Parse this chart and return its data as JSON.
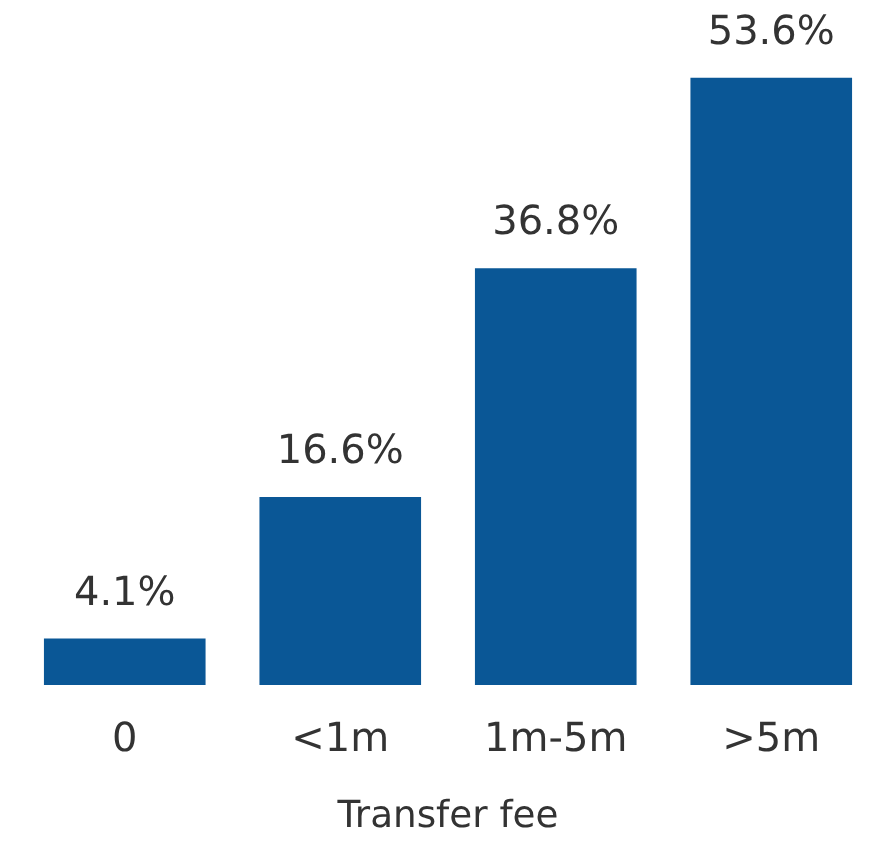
{
  "chart_data": {
    "type": "bar",
    "xlabel": "Transfer fee",
    "categories": [
      "0",
      "<1m",
      "1m-5m",
      ">5m"
    ],
    "values": [
      4.1,
      16.6,
      36.8,
      53.6
    ],
    "value_labels": [
      "4.1%",
      "16.6%",
      "36.8%",
      "53.6%"
    ],
    "color": "#0a5796",
    "grid": false
  }
}
